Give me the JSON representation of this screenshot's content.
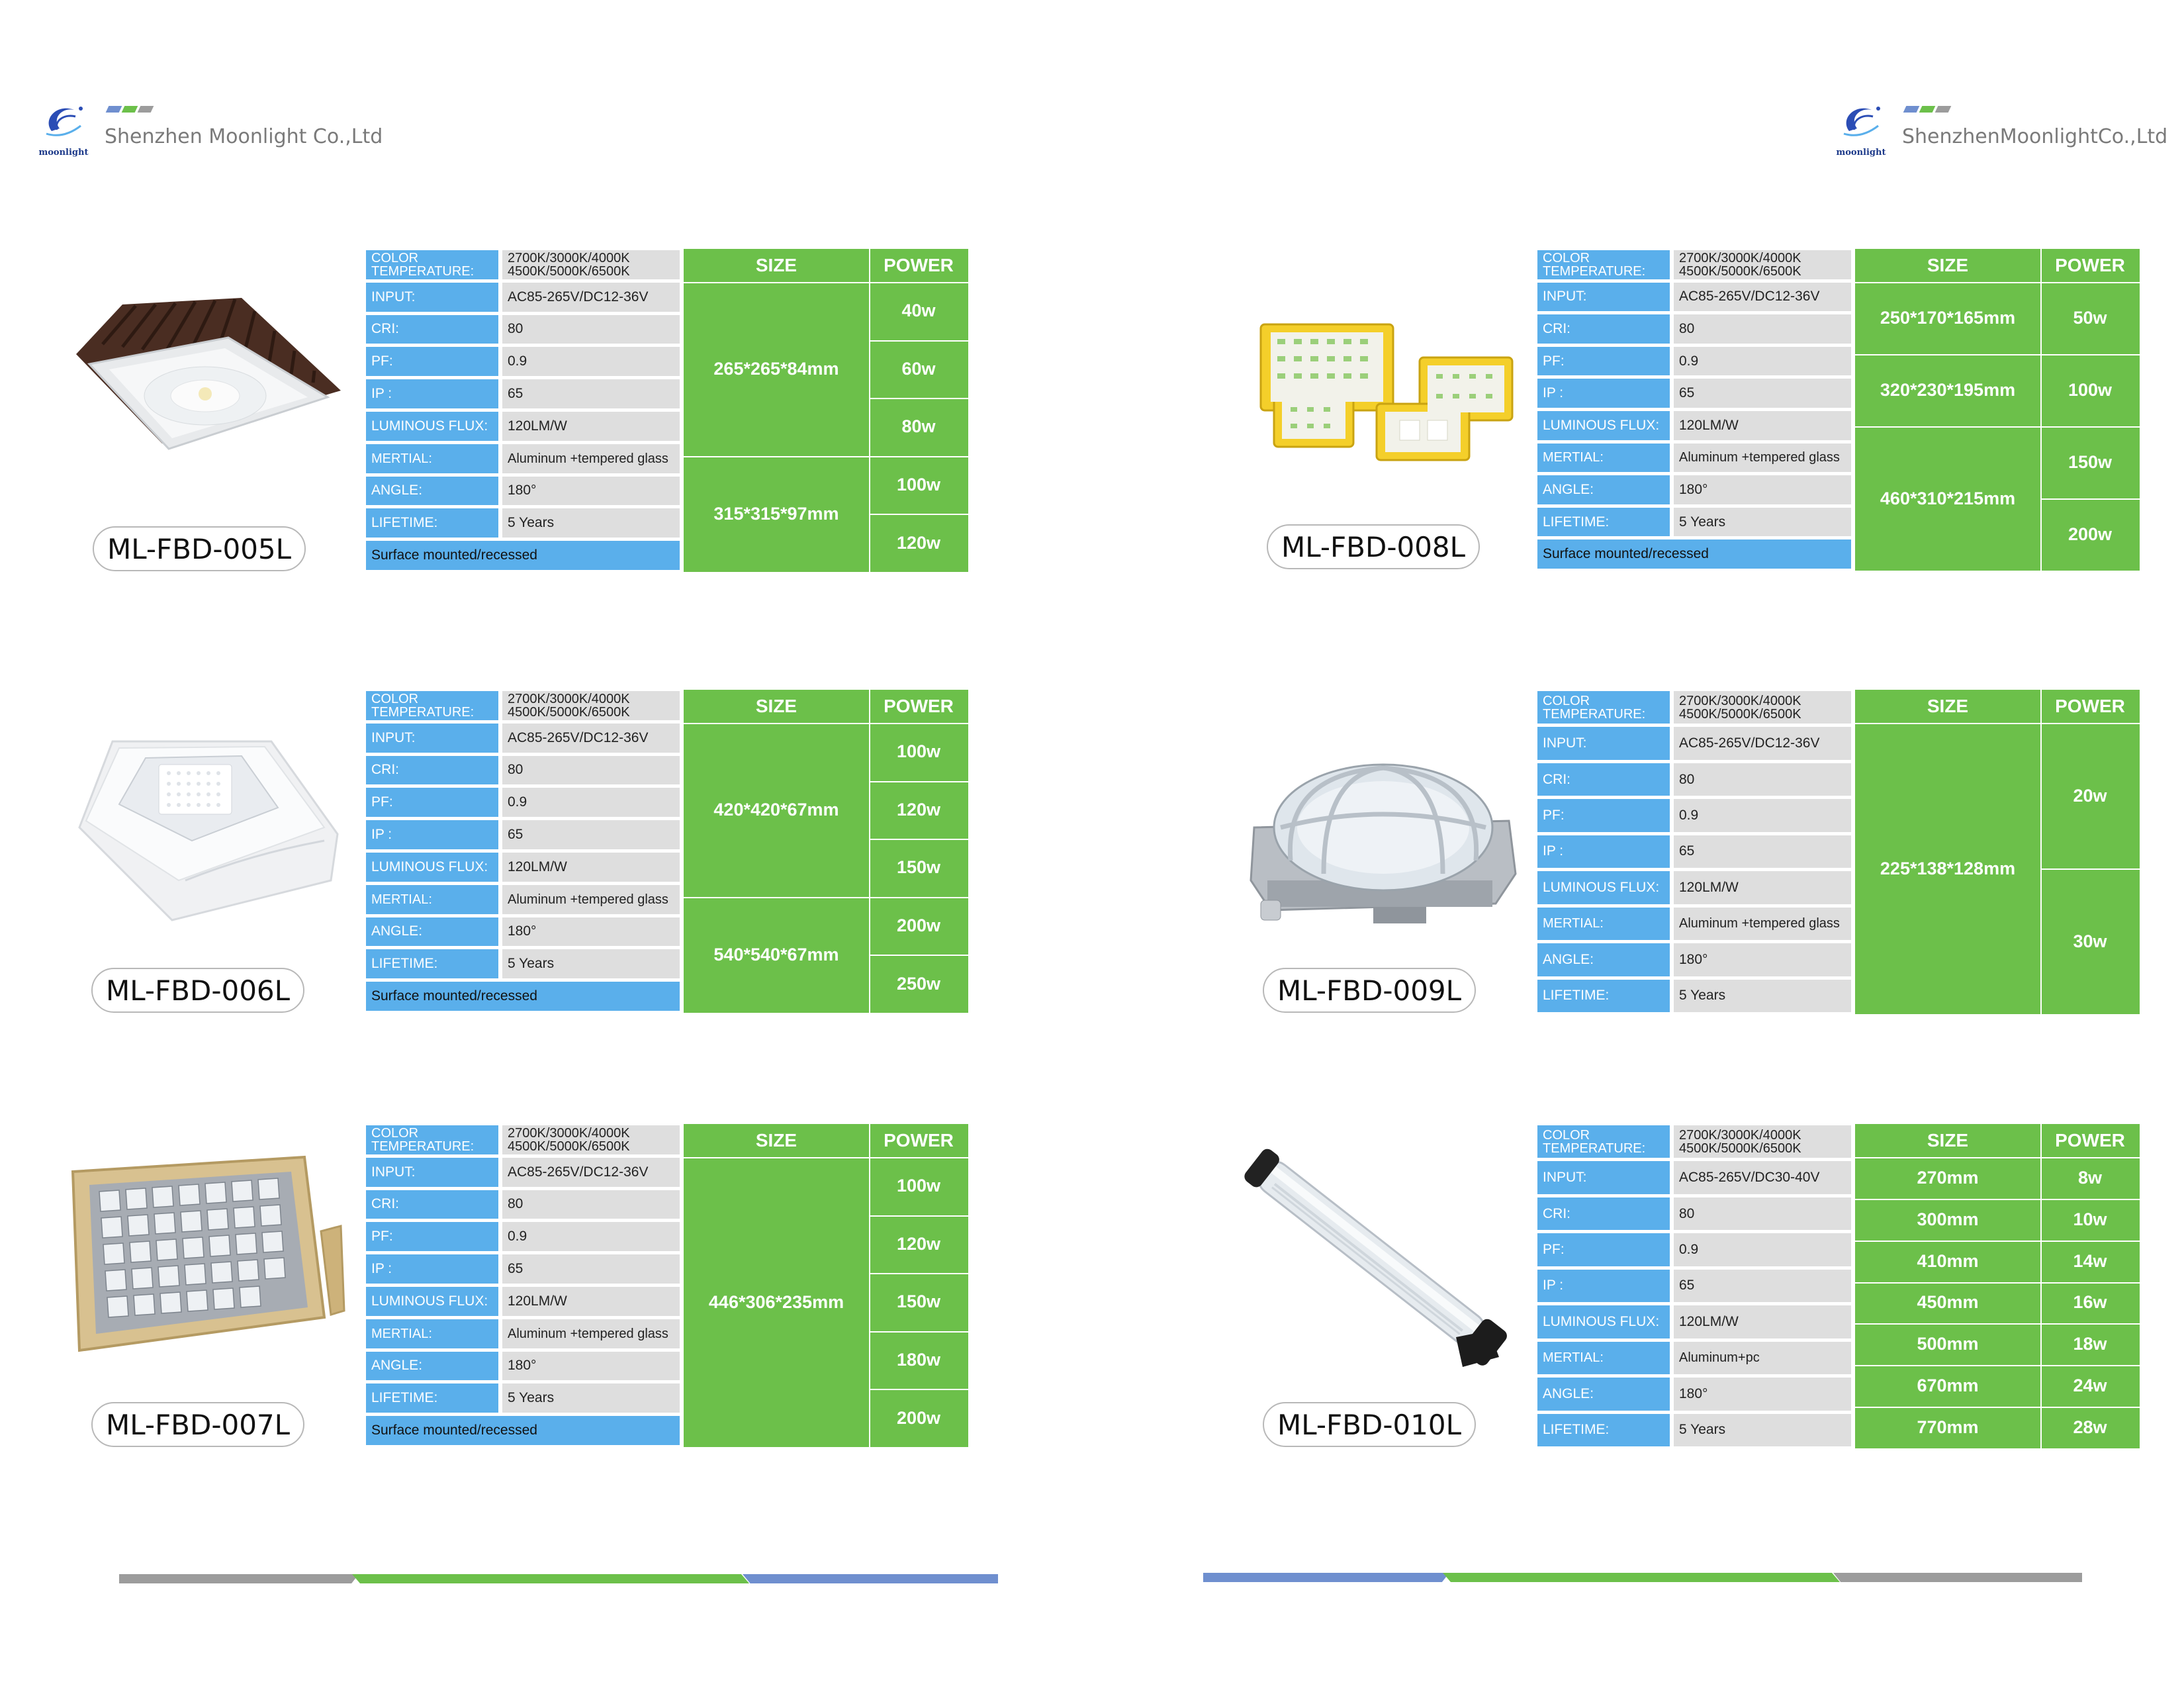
{
  "left_header": {
    "logo_text": "moonlight",
    "company": "Shenzhen Moonlight Co.,Ltd"
  },
  "right_header": {
    "logo_text": "moonlight",
    "company": "ShenzhenMoonlightCo.,Ltd"
  },
  "brand_colors": {
    "blue": "#5aafeb",
    "green": "#6cc04a",
    "grey": "#9c9c9c",
    "slate": "#6f8fcf"
  },
  "spec_headers": {
    "size": "SIZE",
    "power": "POWER"
  },
  "products": [
    {
      "model": "ML-FBD-005L",
      "photo_icon": "canopy-light-photo",
      "specs": [
        {
          "label": "COLOR TEMPERATURE:",
          "value": "2700K/3000K/4000K 4500K/5000K/6500K"
        },
        {
          "label": "INPUT:",
          "value": "AC85-265V/DC12-36V"
        },
        {
          "label": "CRI:",
          "value": "80"
        },
        {
          "label": "PF:",
          "value": "0.9"
        },
        {
          "label": "IP :",
          "value": "65"
        },
        {
          "label": "LUMINOUS FLUX:",
          "value": "120LM/W"
        },
        {
          "label": "MERTIAL:",
          "value": "Aluminum +tempered glass"
        },
        {
          "label": "ANGLE:",
          "value": "180°"
        },
        {
          "label": "LIFETIME:",
          "value": "5 Years"
        }
      ],
      "footer": "Surface mounted/recessed",
      "sizes": [
        "265*265*84mm",
        "315*315*97mm"
      ],
      "powers": [
        "40w",
        "60w",
        "80w",
        "100w",
        "120w"
      ]
    },
    {
      "model": "ML-FBD-006L",
      "photo_icon": "white-canopy-light-photo",
      "specs": [
        {
          "label": "COLOR TEMPERATURE:",
          "value": "2700K/3000K/4000K 4500K/5000K/6500K"
        },
        {
          "label": "INPUT:",
          "value": "AC85-265V/DC12-36V"
        },
        {
          "label": "CRI:",
          "value": "80"
        },
        {
          "label": "PF:",
          "value": "0.9"
        },
        {
          "label": "IP :",
          "value": "65"
        },
        {
          "label": "LUMINOUS FLUX:",
          "value": "120LM/W"
        },
        {
          "label": "MERTIAL:",
          "value": "Aluminum +tempered glass"
        },
        {
          "label": "ANGLE:",
          "value": "180°"
        },
        {
          "label": "LIFETIME:",
          "value": "5 Years"
        }
      ],
      "footer": "Surface mounted/recessed",
      "sizes": [
        "420*420*67mm",
        "540*540*67mm"
      ],
      "powers": [
        "100w",
        "120w",
        "150w",
        "200w",
        "250w"
      ]
    },
    {
      "model": "ML-FBD-007L",
      "photo_icon": "floodlight-photo",
      "specs": [
        {
          "label": "COLOR TEMPERATURE:",
          "value": "2700K/3000K/4000K 4500K/5000K/6500K"
        },
        {
          "label": "INPUT:",
          "value": "AC85-265V/DC12-36V"
        },
        {
          "label": "CRI:",
          "value": "80"
        },
        {
          "label": "PF:",
          "value": "0.9"
        },
        {
          "label": "IP :",
          "value": "65"
        },
        {
          "label": "LUMINOUS FLUX:",
          "value": "120LM/W"
        },
        {
          "label": "MERTIAL:",
          "value": "Aluminum +tempered glass"
        },
        {
          "label": "ANGLE:",
          "value": "180°"
        },
        {
          "label": "LIFETIME:",
          "value": "5 Years"
        }
      ],
      "footer": "Surface mounted/recessed",
      "sizes": [
        "446*306*235mm"
      ],
      "powers": [
        "100w",
        "120w",
        "150w",
        "180w",
        "200w"
      ]
    },
    {
      "model": "ML-FBD-008L",
      "photo_icon": "yellow-floodlights-photo",
      "specs": [
        {
          "label": "COLOR TEMPERATURE:",
          "value": "2700K/3000K/4000K 4500K/5000K/6500K"
        },
        {
          "label": "INPUT:",
          "value": "AC85-265V/DC12-36V"
        },
        {
          "label": "CRI:",
          "value": "80"
        },
        {
          "label": "PF:",
          "value": "0.9"
        },
        {
          "label": "IP :",
          "value": "65"
        },
        {
          "label": "LUMINOUS FLUX:",
          "value": "120LM/W"
        },
        {
          "label": "MERTIAL:",
          "value": "Aluminum +tempered glass"
        },
        {
          "label": "ANGLE:",
          "value": "180°"
        },
        {
          "label": "LIFETIME:",
          "value": "5 Years"
        }
      ],
      "footer": "Surface mounted/recessed",
      "sizes": [
        "250*170*165mm",
        "320*230*195mm",
        "460*310*215mm"
      ],
      "powers": [
        "50w",
        "100w",
        "150w",
        "200w"
      ]
    },
    {
      "model": "ML-FBD-009L",
      "photo_icon": "bulkhead-light-photo",
      "specs": [
        {
          "label": "COLOR TEMPERATURE:",
          "value": "2700K/3000K/4000K 4500K/5000K/6500K"
        },
        {
          "label": "INPUT:",
          "value": "AC85-265V/DC12-36V"
        },
        {
          "label": "CRI:",
          "value": "80"
        },
        {
          "label": "PF:",
          "value": "0.9"
        },
        {
          "label": "IP :",
          "value": "65"
        },
        {
          "label": "LUMINOUS FLUX:",
          "value": "120LM/W"
        },
        {
          "label": "MERTIAL:",
          "value": "Aluminum +tempered glass"
        },
        {
          "label": "ANGLE:",
          "value": "180°"
        },
        {
          "label": "LIFETIME:",
          "value": "5 Years"
        }
      ],
      "footer": "",
      "sizes": [
        "225*138*128mm"
      ],
      "powers": [
        "20w",
        "30w"
      ]
    },
    {
      "model": "ML-FBD-010L",
      "photo_icon": "tube-light-photo",
      "specs": [
        {
          "label": "COLOR TEMPERATURE:",
          "value": "2700K/3000K/4000K 4500K/5000K/6500K"
        },
        {
          "label": "INPUT:",
          "value": "AC85-265V/DC30-40V"
        },
        {
          "label": "CRI:",
          "value": "80"
        },
        {
          "label": "PF:",
          "value": "0.9"
        },
        {
          "label": "IP :",
          "value": "65"
        },
        {
          "label": "LUMINOUS FLUX:",
          "value": "120LM/W"
        },
        {
          "label": "MERTIAL:",
          "value": "Aluminum+pc"
        },
        {
          "label": "ANGLE:",
          "value": "180°"
        },
        {
          "label": "LIFETIME:",
          "value": "5 Years"
        }
      ],
      "footer": "",
      "sizes": [
        "270mm",
        "300mm",
        "410mm",
        "450mm",
        "500mm",
        "670mm",
        "770mm"
      ],
      "powers": [
        "8w",
        "10w",
        "14w",
        "16w",
        "18w",
        "24w",
        "28w"
      ]
    }
  ]
}
